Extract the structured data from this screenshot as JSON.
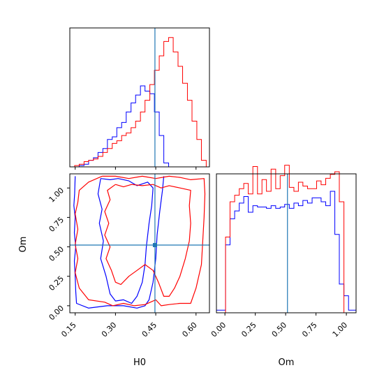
{
  "chart_data": [
    {
      "panel": "H0 marginal",
      "type": "step-histogram",
      "x_range": [
        0.13,
        0.65
      ],
      "bins": [
        0.13,
        0.148,
        0.165,
        0.183,
        0.2,
        0.218,
        0.235,
        0.253,
        0.27,
        0.288,
        0.305,
        0.323,
        0.34,
        0.358,
        0.375,
        0.393,
        0.41,
        0.428,
        0.445,
        0.463,
        0.48,
        0.498,
        0.515,
        0.533,
        0.55,
        0.568,
        0.585,
        0.603,
        0.62,
        0.638,
        0.65
      ],
      "truth": 0.447,
      "series": [
        {
          "color": "#0000ff",
          "values": [
            0.0,
            0.0,
            0.01,
            0.02,
            0.05,
            0.07,
            0.11,
            0.14,
            0.21,
            0.23,
            0.3,
            0.34,
            0.42,
            0.49,
            0.55,
            0.62,
            0.58,
            0.56,
            0.42,
            0.24,
            0.03,
            0,
            0,
            0,
            0,
            0,
            0,
            0,
            0,
            0
          ]
        },
        {
          "color": "#ff0000",
          "values": [
            0.0,
            0.01,
            0.02,
            0.04,
            0.05,
            0.06,
            0.08,
            0.11,
            0.14,
            0.18,
            0.2,
            0.24,
            0.26,
            0.3,
            0.35,
            0.42,
            0.51,
            0.63,
            0.74,
            0.85,
            0.96,
            0.99,
            0.88,
            0.77,
            0.64,
            0.51,
            0.35,
            0.21,
            0.05,
            0.0
          ]
        }
      ]
    },
    {
      "panel": "Om marginal",
      "type": "step-histogram",
      "x_range": [
        -0.07,
        1.08
      ],
      "bins": [
        -0.07,
        0.005,
        0.042,
        0.08,
        0.118,
        0.155,
        0.192,
        0.23,
        0.268,
        0.305,
        0.342,
        0.38,
        0.418,
        0.455,
        0.492,
        0.53,
        0.568,
        0.605,
        0.642,
        0.68,
        0.718,
        0.755,
        0.792,
        0.83,
        0.868,
        0.905,
        0.942,
        0.98,
        1.018,
        1.08
      ],
      "truth": 0.515,
      "series": [
        {
          "color": "#0000ff",
          "values": [
            0.02,
            0.52,
            0.72,
            0.78,
            0.84,
            0.89,
            0.77,
            0.82,
            0.81,
            0.81,
            0.8,
            0.82,
            0.8,
            0.81,
            0.83,
            0.8,
            0.84,
            0.82,
            0.86,
            0.84,
            0.88,
            0.88,
            0.85,
            0.82,
            0.93,
            0.6,
            0.22,
            0.13,
            0.02
          ]
        },
        {
          "color": "#ff0000",
          "values": [
            0.0,
            0.58,
            0.85,
            0.9,
            0.95,
            0.99,
            0.91,
            1.12,
            0.91,
            1.02,
            0.93,
            1.1,
            0.95,
            1.05,
            1.13,
            0.96,
            0.93,
            1.0,
            0.97,
            0.95,
            0.95,
            1.01,
            0.98,
            1.03,
            1.06,
            1.08,
            0.85,
            0.0,
            0.0
          ]
        }
      ]
    },
    {
      "panel": "H0 vs Om joint",
      "type": "contour",
      "x_range": [
        0.13,
        0.65
      ],
      "y_range": [
        -0.06,
        1.12
      ],
      "truth": {
        "x": 0.447,
        "y": 0.515
      },
      "xticks": [
        "0.15",
        "0.30",
        "0.45",
        "0.60"
      ],
      "xtick_values": [
        0.15,
        0.3,
        0.45,
        0.6
      ],
      "yticks": [
        "0.00",
        "0.25",
        "0.50",
        "0.75",
        "1.00"
      ],
      "ytick_values": [
        0.0,
        0.25,
        0.5,
        0.75,
        1.0
      ],
      "xlabel": "H0",
      "ylabel": "Om",
      "contours": [
        {
          "color": "#0000ff",
          "level": "outer",
          "points": [
            [
              0.15,
              1.1
            ],
            [
              0.148,
              0.95
            ],
            [
              0.145,
              0.85
            ],
            [
              0.15,
              0.75
            ],
            [
              0.147,
              0.62
            ],
            [
              0.152,
              0.5
            ],
            [
              0.147,
              0.38
            ],
            [
              0.15,
              0.25
            ],
            [
              0.152,
              0.12
            ],
            [
              0.155,
              0.02
            ],
            [
              0.2,
              -0.02
            ],
            [
              0.27,
              0.0
            ],
            [
              0.33,
              0.0
            ],
            [
              0.38,
              -0.02
            ],
            [
              0.41,
              0.0
            ],
            [
              0.425,
              0.05
            ],
            [
              0.44,
              0.2
            ],
            [
              0.45,
              0.4
            ],
            [
              0.455,
              0.6
            ],
            [
              0.465,
              0.8
            ],
            [
              0.475,
              0.98
            ],
            [
              0.48,
              1.1
            ]
          ]
        },
        {
          "color": "#0000ff",
          "level": "inner",
          "points": [
            [
              0.245,
              1.08
            ],
            [
              0.235,
              0.95
            ],
            [
              0.25,
              0.82
            ],
            [
              0.24,
              0.7
            ],
            [
              0.255,
              0.55
            ],
            [
              0.245,
              0.4
            ],
            [
              0.265,
              0.25
            ],
            [
              0.28,
              0.1
            ],
            [
              0.3,
              0.04
            ],
            [
              0.33,
              0.05
            ],
            [
              0.36,
              0.02
            ],
            [
              0.38,
              0.08
            ],
            [
              0.4,
              0.2
            ],
            [
              0.41,
              0.35
            ],
            [
              0.415,
              0.5
            ],
            [
              0.425,
              0.7
            ],
            [
              0.435,
              0.85
            ],
            [
              0.44,
              1.0
            ],
            [
              0.42,
              1.05
            ],
            [
              0.38,
              1.02
            ],
            [
              0.35,
              1.06
            ],
            [
              0.31,
              1.08
            ],
            [
              0.28,
              1.07
            ],
            [
              0.245,
              1.08
            ]
          ]
        },
        {
          "color": "#ff0000",
          "level": "outer",
          "points": [
            [
              0.25,
              1.1
            ],
            [
              0.2,
              1.05
            ],
            [
              0.165,
              0.98
            ],
            [
              0.16,
              0.88
            ],
            [
              0.15,
              0.78
            ],
            [
              0.16,
              0.65
            ],
            [
              0.15,
              0.52
            ],
            [
              0.16,
              0.4
            ],
            [
              0.15,
              0.28
            ],
            [
              0.165,
              0.15
            ],
            [
              0.2,
              0.05
            ],
            [
              0.26,
              0.03
            ],
            [
              0.29,
              0.0
            ],
            [
              0.33,
              0.02
            ],
            [
              0.37,
              0.0
            ],
            [
              0.41,
              0.01
            ],
            [
              0.45,
              0.05
            ],
            [
              0.47,
              0.0
            ],
            [
              0.5,
              0.01
            ],
            [
              0.54,
              0.02
            ],
            [
              0.58,
              0.02
            ],
            [
              0.6,
              0.15
            ],
            [
              0.62,
              0.35
            ],
            [
              0.625,
              0.55
            ],
            [
              0.63,
              0.75
            ],
            [
              0.633,
              0.95
            ],
            [
              0.63,
              1.08
            ],
            [
              0.58,
              1.07
            ],
            [
              0.54,
              1.09
            ],
            [
              0.5,
              1.1
            ],
            [
              0.45,
              1.08
            ],
            [
              0.4,
              1.1
            ],
            [
              0.35,
              1.08
            ],
            [
              0.3,
              1.1
            ],
            [
              0.25,
              1.1
            ]
          ]
        },
        {
          "color": "#ff0000",
          "level": "inner",
          "points": [
            [
              0.3,
              1.03
            ],
            [
              0.27,
              0.98
            ],
            [
              0.28,
              0.9
            ],
            [
              0.26,
              0.8
            ],
            [
              0.275,
              0.7
            ],
            [
              0.26,
              0.6
            ],
            [
              0.28,
              0.5
            ],
            [
              0.265,
              0.4
            ],
            [
              0.285,
              0.3
            ],
            [
              0.3,
              0.2
            ],
            [
              0.32,
              0.18
            ],
            [
              0.35,
              0.25
            ],
            [
              0.38,
              0.3
            ],
            [
              0.41,
              0.35
            ],
            [
              0.44,
              0.3
            ],
            [
              0.46,
              0.2
            ],
            [
              0.48,
              0.08
            ],
            [
              0.5,
              0.08
            ],
            [
              0.52,
              0.15
            ],
            [
              0.54,
              0.25
            ],
            [
              0.56,
              0.4
            ],
            [
              0.575,
              0.55
            ],
            [
              0.58,
              0.7
            ],
            [
              0.575,
              0.85
            ],
            [
              0.58,
              0.98
            ],
            [
              0.54,
              1.0
            ],
            [
              0.5,
              1.02
            ],
            [
              0.47,
              1.0
            ],
            [
              0.44,
              1.03
            ],
            [
              0.4,
              1.02
            ],
            [
              0.36,
              1.03
            ],
            [
              0.33,
              1.01
            ],
            [
              0.3,
              1.03
            ]
          ]
        }
      ]
    }
  ],
  "axes": {
    "om_xticks": [
      "0.00",
      "0.25",
      "0.50",
      "0.75",
      "1.00"
    ],
    "om_xtick_values": [
      0.0,
      0.25,
      0.5,
      0.75,
      1.0
    ],
    "om_xlabel": "Om"
  },
  "colors": {
    "truth_line": "#1f77b4",
    "series_a": "#0000ff",
    "series_b": "#ff0000"
  }
}
